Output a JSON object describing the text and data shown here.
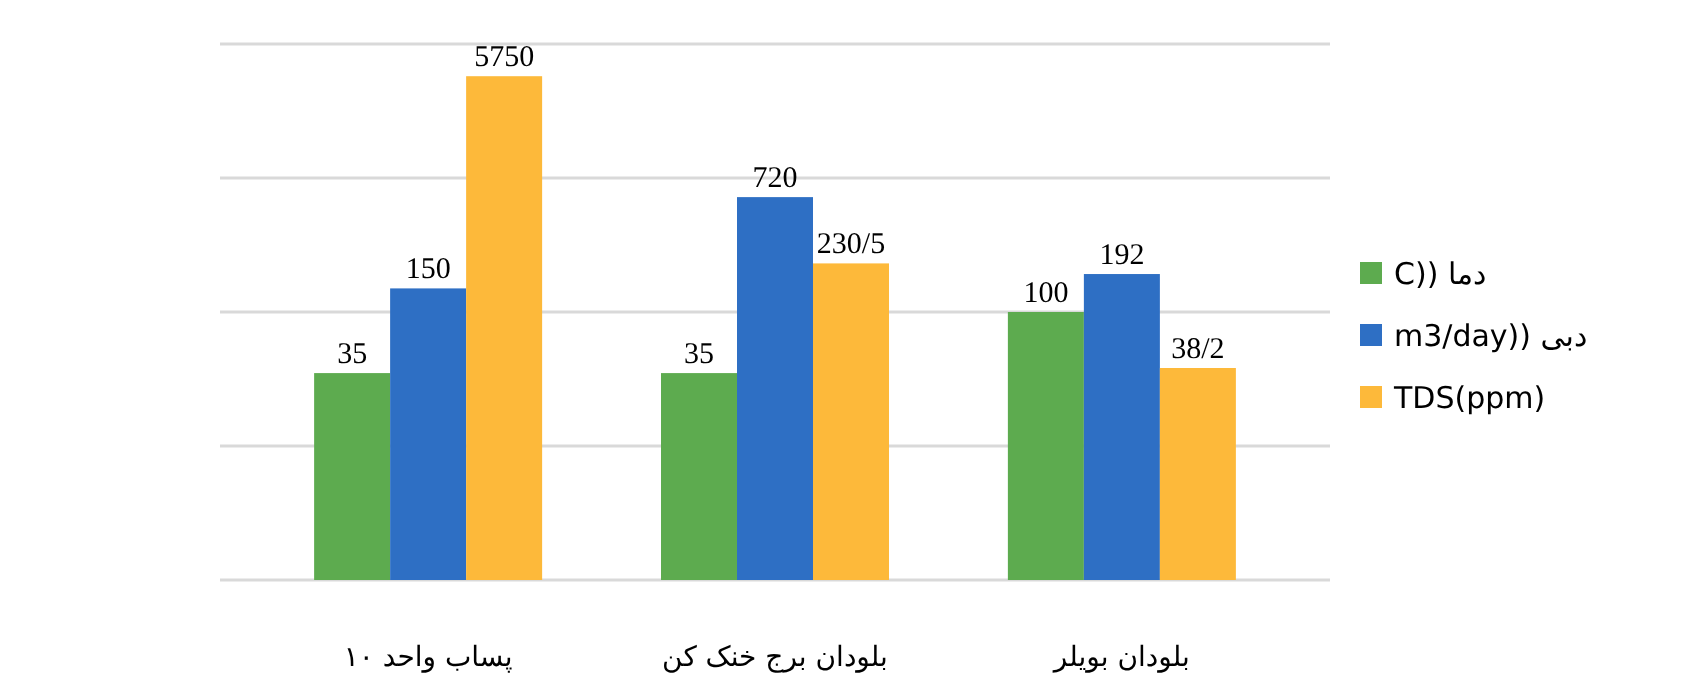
{
  "chart_data": {
    "type": "bar",
    "categories": [
      "پساب واحد ۱۰",
      "بلودان برج خنک کن",
      "بلودان بویلر"
    ],
    "series": [
      {
        "name": "C)) دما",
        "color": "#5dab4f",
        "values": [
          35,
          35,
          100
        ],
        "value_labels": [
          "35",
          "35",
          "100"
        ]
      },
      {
        "name": "m3/day)) دبی",
        "color": "#2e6fc4",
        "values": [
          150,
          720,
          192
        ],
        "value_labels": [
          "150",
          "720",
          "192"
        ]
      },
      {
        "name": "TDS(ppm)",
        "color": "#fdb93a",
        "values": [
          5750,
          230.5,
          38.2
        ],
        "value_labels": [
          "5750",
          "230/5",
          "38/2"
        ]
      }
    ],
    "log": true,
    "ylim": [
      1,
      10000
    ],
    "yticks": [
      {
        "value": 1,
        "label": null
      },
      {
        "value": 10,
        "label": null
      },
      {
        "value": 100,
        "label": null
      },
      {
        "value": 1000,
        "label": null
      },
      {
        "value": 10000,
        "label": null
      }
    ],
    "tick_labels": "x",
    "grid": "y",
    "legend": "right"
  }
}
